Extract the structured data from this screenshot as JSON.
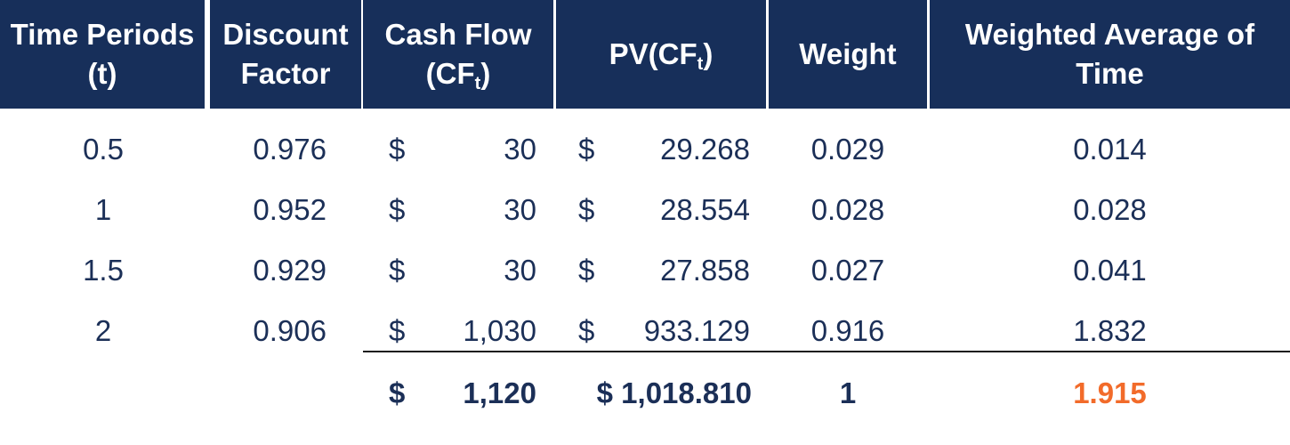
{
  "table": {
    "headers": {
      "t_line1": "Time Periods",
      "t_line2": "(t)",
      "df_line1": "Discount",
      "df_line2": "Factor",
      "cf_line1": "Cash Flow",
      "cf_line2_pre": "(CF",
      "cf_line2_sub": "t",
      "cf_line2_post": ")",
      "pv_pre": "PV(CF",
      "pv_sub": "t",
      "pv_post": ")",
      "weight": "Weight",
      "wat_line1": "Weighted Average of",
      "wat_line2": "Time"
    },
    "rows": [
      {
        "t": "0.5",
        "df": "0.976",
        "cf_sym": "$",
        "cf": "30",
        "pv_sym": "$",
        "pv": "29.268",
        "w": "0.029",
        "wat": "0.014"
      },
      {
        "t": "1",
        "df": "0.952",
        "cf_sym": "$",
        "cf": "30",
        "pv_sym": "$",
        "pv": "28.554",
        "w": "0.028",
        "wat": "0.028"
      },
      {
        "t": "1.5",
        "df": "0.929",
        "cf_sym": "$",
        "cf": "30",
        "pv_sym": "$",
        "pv": "27.858",
        "w": "0.027",
        "wat": "0.041"
      },
      {
        "t": "2",
        "df": "0.906",
        "cf_sym": "$",
        "cf": "1,030",
        "pv_sym": "$",
        "pv": "933.129",
        "w": "0.916",
        "wat": "1.832"
      }
    ],
    "totals": {
      "cf_sym": "$",
      "cf": "1,120",
      "pv": "$ 1,018.810",
      "w": "1",
      "wat": "1.915"
    }
  },
  "colors": {
    "header_bg": "#172f5a",
    "text": "#1b2f57",
    "accent": "#f26b2a"
  }
}
